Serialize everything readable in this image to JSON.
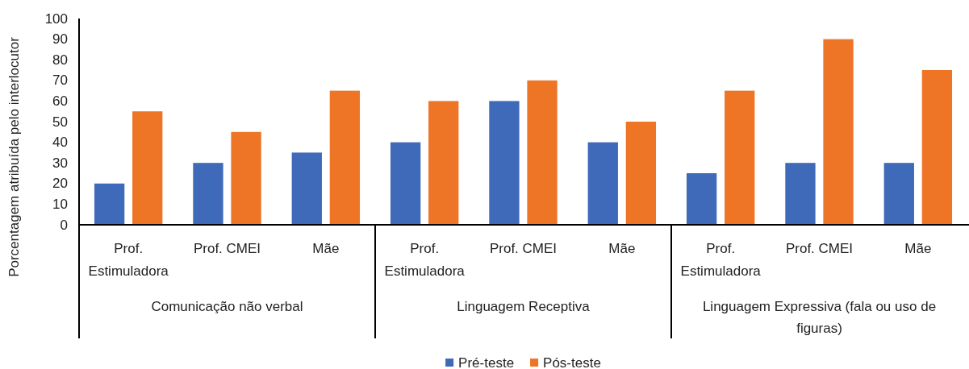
{
  "chart_data": {
    "type": "bar",
    "categories": [
      "Prof. Estimuladora",
      "Prof. CMEI",
      "Mãe",
      "Prof. Estimuladora",
      "Prof. CMEI",
      "Mãe",
      "Prof. Estimuladora",
      "Prof. CMEI",
      "Mãe"
    ],
    "series": [
      {
        "name": "Pré-teste",
        "color": "#3f69b9",
        "values": [
          20,
          30,
          35,
          40,
          60,
          40,
          25,
          30,
          30
        ]
      },
      {
        "name": "Pós-teste",
        "color": "#ee7526",
        "values": [
          55,
          45,
          65,
          60,
          70,
          50,
          65,
          90,
          75
        ]
      }
    ],
    "ylabel": "Porcentagem atribuída pelo interlocutor",
    "annotations": [
      "Comunicação não verbal",
      "Linguagem Receptiva",
      "Linguagem Expressiva (fala ou uso de figuras)"
    ],
    "ylim": [
      0,
      100
    ],
    "yticks": [
      0,
      10,
      20,
      30,
      40,
      50,
      60,
      70,
      80,
      90,
      100
    ],
    "legend": "bottom"
  }
}
